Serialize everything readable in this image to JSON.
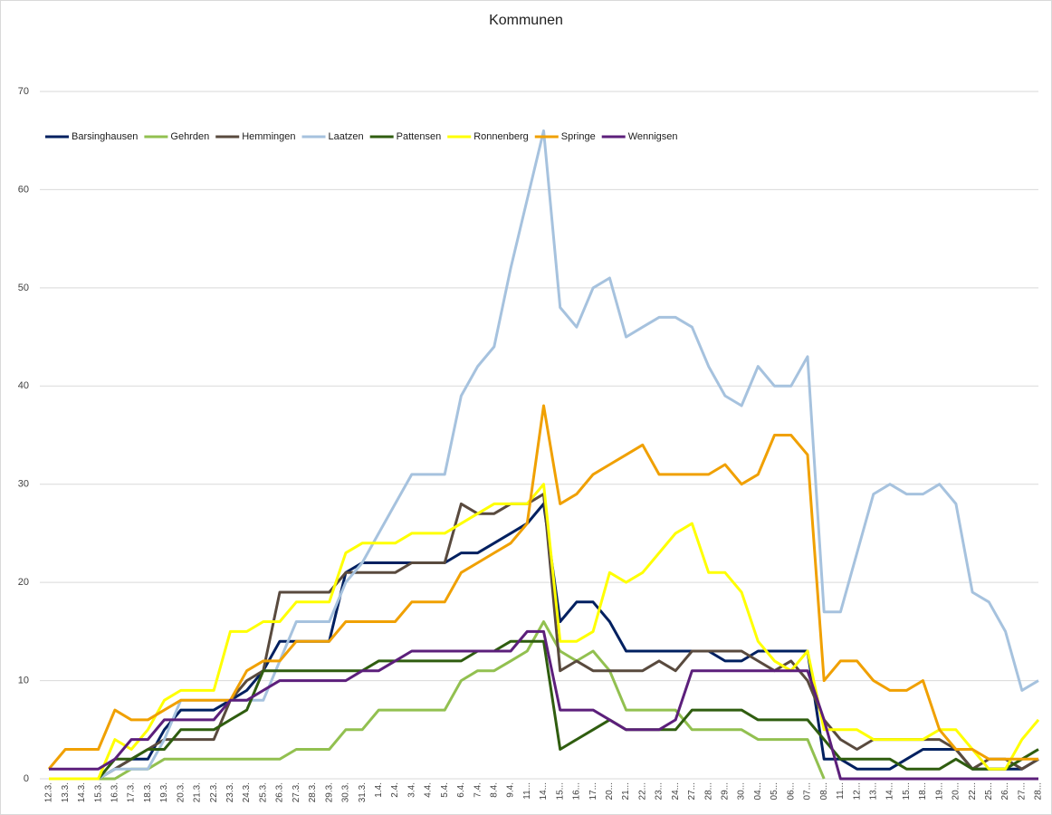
{
  "chart_data": {
    "type": "line",
    "title": "Kommunen",
    "categories": [
      "12.3.",
      "13.3.",
      "14.3.",
      "15.3.",
      "16.3.",
      "17.3.",
      "18.3.",
      "19.3.",
      "20.3.",
      "21.3.",
      "22.3.",
      "23.3.",
      "24.3.",
      "25.3.",
      "26.3.",
      "27.3.",
      "28.3.",
      "29.3.",
      "30.3.",
      "31.3.",
      "1.4.",
      "2.4.",
      "3.4.",
      "4.4.",
      "5.4.",
      "6.4.",
      "7.4.",
      "8.4.",
      "9.4.",
      "11...",
      "14...",
      "15...",
      "16...",
      "17...",
      "20...",
      "21...",
      "22...",
      "23...",
      "24...",
      "27...",
      "28...",
      "29...",
      "30...",
      "04...",
      "05...",
      "06...",
      "07...",
      "08...",
      "11...",
      "12...",
      "13...",
      "14...",
      "15...",
      "18...",
      "19...",
      "20...",
      "22...",
      "25...",
      "26...",
      "27...",
      "28..."
    ],
    "series": [
      {
        "name": "Barsinghausen",
        "color": "#002060",
        "values": [
          null,
          null,
          null,
          0,
          1,
          2,
          2,
          5,
          7,
          7,
          7,
          8,
          9,
          11,
          14,
          14,
          14,
          14,
          21,
          22,
          22,
          22,
          22,
          22,
          22,
          23,
          23,
          24,
          25,
          26,
          28,
          16,
          18,
          18,
          16,
          13,
          13,
          13,
          13,
          13,
          13,
          12,
          12,
          13,
          13,
          13,
          13,
          2,
          2,
          1,
          1,
          1,
          2,
          3,
          3,
          3,
          1,
          1,
          1,
          1,
          2
        ]
      },
      {
        "name": "Gehrden",
        "color": "#92c050",
        "values": [
          null,
          null,
          null,
          0,
          0,
          1,
          1,
          2,
          2,
          2,
          2,
          2,
          2,
          2,
          2,
          3,
          3,
          3,
          5,
          5,
          7,
          7,
          7,
          7,
          7,
          10,
          11,
          11,
          12,
          13,
          16,
          13,
          12,
          13,
          11,
          7,
          7,
          7,
          7,
          5,
          5,
          5,
          5,
          4,
          4,
          4,
          4,
          0,
          null,
          null,
          null,
          null,
          null,
          null,
          null,
          null,
          null,
          null,
          null,
          null,
          null
        ]
      },
      {
        "name": "Hemmingen",
        "color": "#594a3e",
        "values": [
          null,
          null,
          null,
          0,
          1,
          2,
          3,
          4,
          4,
          4,
          4,
          8,
          10,
          11,
          19,
          19,
          19,
          19,
          21,
          21,
          21,
          21,
          22,
          22,
          22,
          28,
          27,
          27,
          28,
          28,
          29,
          11,
          12,
          11,
          11,
          11,
          11,
          12,
          11,
          13,
          13,
          13,
          13,
          12,
          11,
          12,
          10,
          6,
          4,
          3,
          4,
          4,
          4,
          4,
          4,
          3,
          1,
          2,
          2,
          1,
          2
        ]
      },
      {
        "name": "Laatzen",
        "color": "#a6c2de",
        "values": [
          null,
          null,
          null,
          0,
          1,
          1,
          1,
          4,
          8,
          8,
          8,
          8,
          8,
          8,
          12,
          16,
          16,
          16,
          20,
          22,
          25,
          28,
          31,
          31,
          31,
          39,
          42,
          44,
          52,
          59,
          66,
          48,
          46,
          50,
          51,
          45,
          46,
          47,
          47,
          46,
          42,
          39,
          38,
          42,
          40,
          40,
          43,
          17,
          17,
          23,
          29,
          30,
          29,
          29,
          30,
          28,
          19,
          18,
          15,
          9,
          10
        ]
      },
      {
        "name": "Pattensen",
        "color": "#2f5d0f",
        "values": [
          null,
          null,
          null,
          0,
          2,
          2,
          3,
          3,
          5,
          5,
          5,
          6,
          7,
          11,
          11,
          11,
          11,
          11,
          11,
          11,
          12,
          12,
          12,
          12,
          12,
          12,
          13,
          13,
          14,
          14,
          14,
          3,
          4,
          5,
          6,
          5,
          5,
          5,
          5,
          7,
          7,
          7,
          7,
          6,
          6,
          6,
          6,
          4,
          2,
          2,
          2,
          2,
          1,
          1,
          1,
          2,
          1,
          1,
          1,
          2,
          3
        ]
      },
      {
        "name": "Ronnenberg",
        "color": "#ffff00",
        "values": [
          0,
          0,
          0,
          0,
          4,
          3,
          5,
          8,
          9,
          9,
          9,
          15,
          15,
          16,
          16,
          18,
          18,
          18,
          23,
          24,
          24,
          24,
          25,
          25,
          25,
          26,
          27,
          28,
          28,
          28,
          30,
          14,
          14,
          15,
          21,
          20,
          21,
          23,
          25,
          26,
          21,
          21,
          19,
          14,
          12,
          11,
          13,
          5,
          5,
          5,
          4,
          4,
          4,
          4,
          5,
          5,
          3,
          1,
          1,
          4,
          6
        ]
      },
      {
        "name": "Springe",
        "color": "#f0a000",
        "values": [
          1,
          3,
          3,
          3,
          7,
          6,
          6,
          7,
          8,
          8,
          8,
          8,
          11,
          12,
          12,
          14,
          14,
          14,
          16,
          16,
          16,
          16,
          18,
          18,
          18,
          21,
          22,
          23,
          24,
          26,
          38,
          28,
          29,
          31,
          32,
          33,
          34,
          31,
          31,
          31,
          31,
          32,
          30,
          31,
          35,
          35,
          33,
          10,
          12,
          12,
          10,
          9,
          9,
          10,
          5,
          3,
          3,
          2,
          2,
          2,
          2
        ]
      },
      {
        "name": "Wennigsen",
        "color": "#5c1f7b",
        "values": [
          1,
          1,
          1,
          1,
          2,
          4,
          4,
          6,
          6,
          6,
          6,
          8,
          8,
          9,
          10,
          10,
          10,
          10,
          10,
          11,
          11,
          12,
          13,
          13,
          13,
          13,
          13,
          13,
          13,
          15,
          15,
          7,
          7,
          7,
          6,
          5,
          5,
          5,
          6,
          11,
          11,
          11,
          11,
          11,
          11,
          11,
          11,
          6,
          0,
          0,
          0,
          0,
          0,
          0,
          0,
          0,
          0,
          0,
          0,
          0,
          0
        ]
      }
    ],
    "ylim": [
      0,
      70
    ],
    "yticks": [
      0,
      10,
      20,
      30,
      40,
      50,
      60,
      70
    ],
    "grid": true,
    "legend": "top-left"
  }
}
